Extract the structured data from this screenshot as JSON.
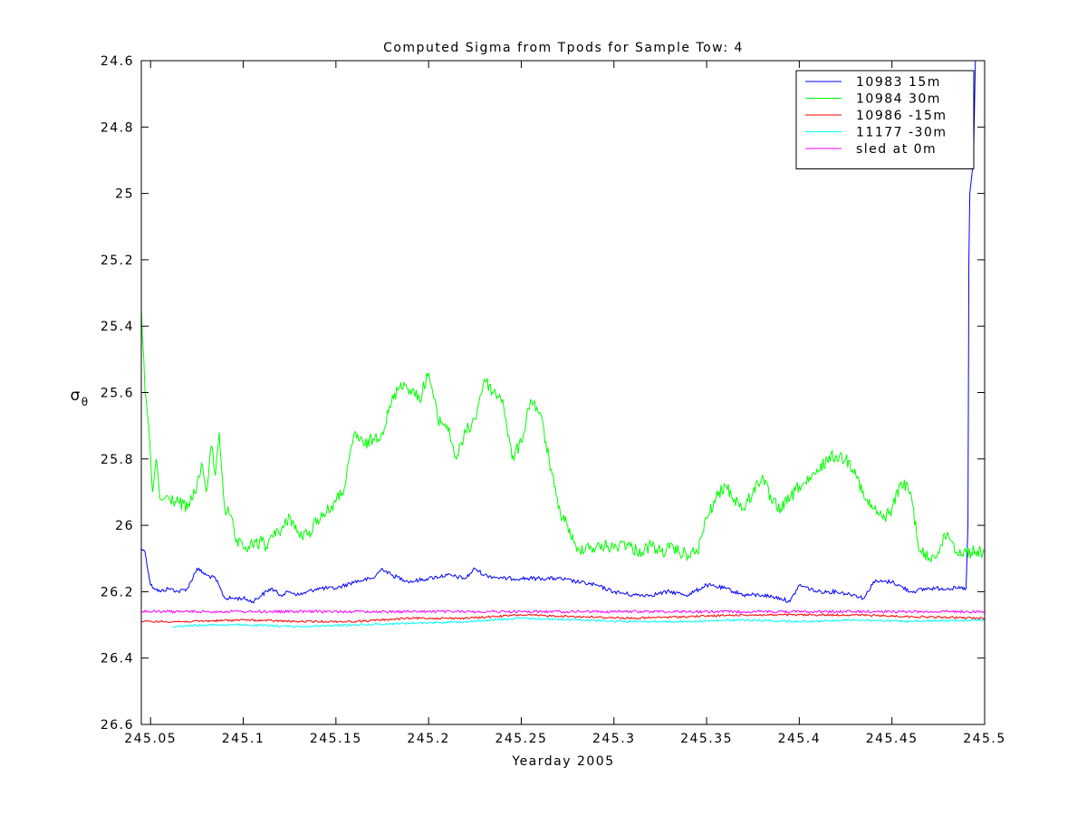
{
  "chart_data": {
    "type": "line",
    "title": "Computed Sigma from Tpods for Sample Tow: 4",
    "xlabel": "Yearday 2005",
    "ylabel": "σ",
    "ylabel_subscript": "θ",
    "xlim": [
      245.045,
      245.5
    ],
    "ylim": [
      24.6,
      26.6
    ],
    "y_reversed": true,
    "x_ticks": [
      "245.05",
      "245.1",
      "245.15",
      "245.2",
      "245.25",
      "245.3",
      "245.35",
      "245.4",
      "245.45",
      "245.5"
    ],
    "y_ticks": [
      "24.6",
      "24.8",
      "25",
      "25.2",
      "25.4",
      "25.6",
      "25.8",
      "26",
      "26.2",
      "26.4",
      "26.6"
    ],
    "grid": false,
    "legend_position": "top-right",
    "series": [
      {
        "name": "10983 15m",
        "color": "#0000ff",
        "x": [
          245.045,
          245.047,
          245.05,
          245.055,
          245.06,
          245.065,
          245.07,
          245.075,
          245.08,
          245.085,
          245.09,
          245.095,
          245.1,
          245.105,
          245.11,
          245.115,
          245.12,
          245.125,
          245.13,
          245.14,
          245.15,
          245.16,
          245.17,
          245.175,
          245.18,
          245.19,
          245.2,
          245.21,
          245.22,
          245.225,
          245.23,
          245.24,
          245.25,
          245.26,
          245.27,
          245.28,
          245.29,
          245.3,
          245.31,
          245.32,
          245.33,
          245.34,
          245.35,
          245.36,
          245.37,
          245.38,
          245.39,
          245.395,
          245.4,
          245.41,
          245.42,
          245.43,
          245.435,
          245.44,
          245.45,
          245.46,
          245.47,
          245.48,
          245.485,
          245.49,
          245.491,
          245.4915,
          245.492,
          245.493,
          245.494,
          245.495
        ],
        "y": [
          26.07,
          26.08,
          26.18,
          26.2,
          26.19,
          26.2,
          26.19,
          26.13,
          26.15,
          26.16,
          26.22,
          26.22,
          26.22,
          26.23,
          26.21,
          26.19,
          26.21,
          26.2,
          26.21,
          26.19,
          26.19,
          26.17,
          26.16,
          26.13,
          26.15,
          26.17,
          26.16,
          26.15,
          26.16,
          26.13,
          26.15,
          26.16,
          26.16,
          26.16,
          26.16,
          26.17,
          26.18,
          26.2,
          26.21,
          26.21,
          26.2,
          26.21,
          26.18,
          26.19,
          26.21,
          26.21,
          26.22,
          26.23,
          26.18,
          26.2,
          26.2,
          26.21,
          26.22,
          26.17,
          26.17,
          26.2,
          26.19,
          26.19,
          26.19,
          26.19,
          26.0,
          25.2,
          25.0,
          24.95,
          24.9,
          24.6
        ]
      },
      {
        "name": "10984 30m",
        "color": "#00ff00",
        "x": [
          245.045,
          245.047,
          245.049,
          245.051,
          245.053,
          245.055,
          245.057,
          245.06,
          245.065,
          245.07,
          245.075,
          245.078,
          245.08,
          245.083,
          245.085,
          245.087,
          245.09,
          245.093,
          245.096,
          245.1,
          245.105,
          245.11,
          245.113,
          245.115,
          245.118,
          245.12,
          245.125,
          245.13,
          245.135,
          245.14,
          245.145,
          245.15,
          245.155,
          245.16,
          245.165,
          245.17,
          245.175,
          245.18,
          245.185,
          245.19,
          245.195,
          245.2,
          245.205,
          245.21,
          245.215,
          245.22,
          245.225,
          245.23,
          245.235,
          245.24,
          245.245,
          245.25,
          245.255,
          245.26,
          245.265,
          245.27,
          245.275,
          245.28,
          245.285,
          245.29,
          245.295,
          245.3,
          245.305,
          245.31,
          245.315,
          245.32,
          245.325,
          245.33,
          245.335,
          245.34,
          245.345,
          245.35,
          245.355,
          245.36,
          245.365,
          245.37,
          245.375,
          245.38,
          245.385,
          245.39,
          245.395,
          245.4,
          245.405,
          245.41,
          245.415,
          245.42,
          245.425,
          245.43,
          245.435,
          245.44,
          245.445,
          245.45,
          245.455,
          245.46,
          245.465,
          245.47,
          245.475,
          245.48,
          245.485,
          245.49,
          245.495,
          245.5
        ],
        "y": [
          25.35,
          25.6,
          25.7,
          25.9,
          25.8,
          25.92,
          25.92,
          25.92,
          25.93,
          25.95,
          25.88,
          25.82,
          25.9,
          25.76,
          25.85,
          25.72,
          25.95,
          25.97,
          26.05,
          26.07,
          26.06,
          26.05,
          26.07,
          26.03,
          26.01,
          26.03,
          25.97,
          26.03,
          26.03,
          25.98,
          25.96,
          25.93,
          25.88,
          25.72,
          25.76,
          25.74,
          25.72,
          25.63,
          25.57,
          25.59,
          25.62,
          25.54,
          25.68,
          25.7,
          25.8,
          25.72,
          25.68,
          25.56,
          25.6,
          25.62,
          25.8,
          25.75,
          25.62,
          25.66,
          25.8,
          25.95,
          26.0,
          26.08,
          26.06,
          26.07,
          26.06,
          26.07,
          26.05,
          26.07,
          26.08,
          26.06,
          26.08,
          26.07,
          26.08,
          26.09,
          26.08,
          25.98,
          25.92,
          25.88,
          25.92,
          25.95,
          25.9,
          25.85,
          25.93,
          25.95,
          25.92,
          25.88,
          25.87,
          25.84,
          25.8,
          25.79,
          25.8,
          25.83,
          25.92,
          25.95,
          25.98,
          25.95,
          25.87,
          25.9,
          26.08,
          26.1,
          26.08,
          26.02,
          26.08,
          26.08,
          26.08,
          26.08
        ]
      },
      {
        "name": "10986 -15m",
        "color": "#ff0000",
        "x": [
          245.045,
          245.07,
          245.1,
          245.13,
          245.16,
          245.19,
          245.22,
          245.25,
          245.28,
          245.31,
          245.34,
          245.37,
          245.4,
          245.43,
          245.46,
          245.5
        ],
        "y": [
          26.29,
          26.29,
          26.285,
          26.29,
          26.29,
          26.28,
          26.28,
          26.27,
          26.275,
          26.28,
          26.275,
          26.27,
          26.27,
          26.27,
          26.275,
          26.28
        ]
      },
      {
        "name": "11177 -30m",
        "color": "#00ffff",
        "x": [
          245.062,
          245.08,
          245.1,
          245.13,
          245.16,
          245.19,
          245.22,
          245.25,
          245.28,
          245.31,
          245.34,
          245.37,
          245.4,
          245.43,
          245.46,
          245.5
        ],
        "y": [
          26.305,
          26.3,
          26.3,
          26.305,
          26.3,
          26.295,
          26.29,
          26.28,
          26.285,
          26.29,
          26.29,
          26.285,
          26.29,
          26.285,
          26.29,
          26.285
        ]
      },
      {
        "name": "sled at 0m",
        "color": "#ff00ff",
        "x": [
          245.045,
          245.07,
          245.1,
          245.13,
          245.16,
          245.19,
          245.22,
          245.25,
          245.28,
          245.31,
          245.34,
          245.37,
          245.4,
          245.43,
          245.46,
          245.5
        ],
        "y": [
          26.26,
          26.26,
          26.26,
          26.26,
          26.26,
          26.26,
          26.26,
          26.26,
          26.26,
          26.26,
          26.26,
          26.26,
          26.26,
          26.26,
          26.26,
          26.26
        ]
      }
    ]
  }
}
